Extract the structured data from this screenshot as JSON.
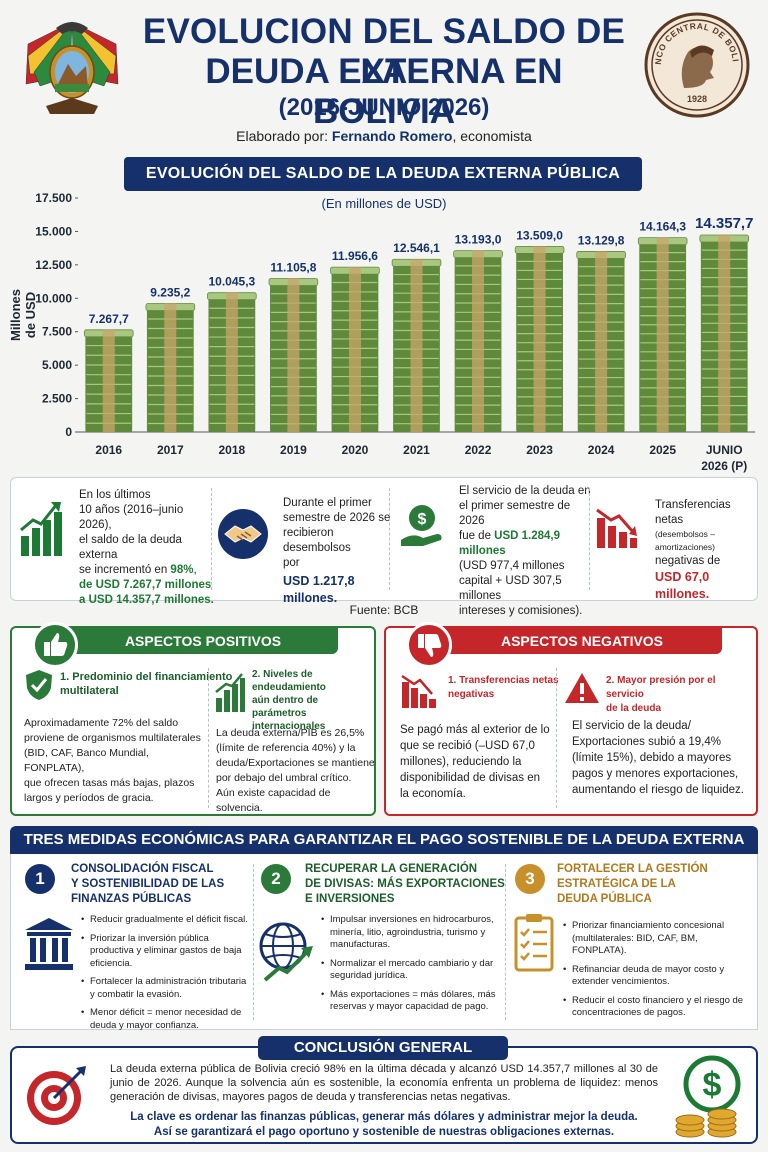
{
  "header": {
    "title_line1": "EVOLUCION DEL SALDO DE LA",
    "title_line2": "DEUDA EXTERNA EN BOLIVIA",
    "title_line3": "(2016-JUNIO 2026)",
    "author_prefix": "Elaborado por: ",
    "author_name": "Fernando Romero",
    "author_suffix": ", economista",
    "seal_text": "BANCO CENTRAL DE BOLIVIA",
    "seal_year": "1928"
  },
  "chart_section": {
    "title": "EVOLUCIÓN DEL SALDO DE LA DEUDA EXTERNA PÚBLICA",
    "subtitle": "(En millones de USD)"
  },
  "chart_data": {
    "type": "bar",
    "ylabel": "Millones de USD",
    "categories": [
      "2016",
      "2017",
      "2018",
      "2019",
      "2020",
      "2021",
      "2022",
      "2023",
      "2024",
      "2025",
      "JUNIO 2026 (P)"
    ],
    "values": [
      7267.7,
      9235.2,
      10045.3,
      11105.8,
      11956.6,
      12546.1,
      13193.0,
      13509.0,
      13129.8,
      14164.3,
      14357.7
    ],
    "value_labels": [
      "7.267,7",
      "9.235,2",
      "10.045,3",
      "11.105,8",
      "11.956,6",
      "12.546,1",
      "13.193,0",
      "13.509,0",
      "13.129,8",
      "14.164,3",
      "14.357,7"
    ],
    "ylim": [
      0,
      17500
    ],
    "yticks": [
      0,
      2500,
      5000,
      7500,
      10000,
      12500,
      15000,
      17500
    ],
    "ytick_labels": [
      "0",
      "2.500",
      "5.000",
      "7.500",
      "10.000",
      "12.500",
      "15.000",
      "17.500"
    ],
    "grid": false,
    "colors": {
      "bar": "#5f8a3c",
      "bar_light": "#a9c780",
      "band": "#c9a66b",
      "label": "#15306b"
    }
  },
  "stats": {
    "s1": {
      "t1": "En los últimos",
      "t2": "10 años (2016–junio 2026),",
      "t3": "el saldo de la deuda externa",
      "t4": "se incrementó en ",
      "t4b": "98%",
      "t4c": ",",
      "t5": "de USD 7.267,7 millones",
      "t6": "a USD 14.357,7 millones."
    },
    "s2": {
      "t1": "Durante el primer",
      "t2": "semestre de 2026 se",
      "t3": "recibieron desembolsos",
      "t4": "por",
      "t5": "USD 1.217,8",
      "t6": "millones."
    },
    "s3": {
      "t1": "El servicio de la deuda en",
      "t2": "el primer semestre de 2026",
      "t3": "fue de ",
      "t3b": "USD 1.284,9",
      "t4": "millones",
      "t5": "(USD 977,4 millones",
      "t6": "capital + USD 307,5 millones",
      "t7": "intereses y comisiones)."
    },
    "s4": {
      "t1": "Transferencias netas",
      "t2": "(desembolsos – amortizaciones)",
      "t3": "negativas de",
      "t4": "USD 67,0",
      "t5": "millones."
    },
    "source": "Fuente: BCB"
  },
  "positive": {
    "title": "ASPECTOS POSITIVOS",
    "p1_title_1": "1. Predominio del financiamiento",
    "p1_title_2": "multilateral",
    "p1_body": [
      "Aproximadamente 72% del saldo",
      "proviene de organismos multilaterales",
      "(BID, CAF, Banco Mundial, FONPLATA),",
      "que ofrecen tasas más bajas, plazos",
      "largos y períodos de gracia."
    ],
    "p2_title": [
      "2. Niveles de endeudamiento",
      "aún dentro de parámetros",
      "internacionales"
    ],
    "p2_body": [
      "La deuda externa/PIB es 26,5%",
      "(límite de referencia 40%) y la",
      "deuda/Exportaciones se mantiene",
      "por debajo del umbral crítico.",
      "Aún existe capacidad de solvencia."
    ]
  },
  "negative": {
    "title": "ASPECTOS NEGATIVOS",
    "n1_title": [
      "1. Transferencias netas",
      "negativas"
    ],
    "n1_body": [
      "Se pagó más al exterior de lo",
      "que se recibió (–USD 67,0",
      "millones), reduciendo la",
      "disponibilidad de divisas en",
      "la economía."
    ],
    "n2_title": [
      "2. Mayor presión por el servicio",
      "de la deuda"
    ],
    "n2_body": [
      "El servicio de la deuda/",
      "Exportaciones subió a 19,4%",
      "(límite 15%), debido a mayores",
      "pagos y menores exportaciones,",
      "aumentando el riesgo de liquidez."
    ]
  },
  "measures": {
    "title": "TRES MEDIDAS ECONÓMICAS PARA GARANTIZAR EL PAGO SOSTENIBLE DE LA DEUDA EXTERNA",
    "m1": {
      "num": "1",
      "title": [
        "CONSOLIDACIÓN FISCAL",
        "Y SOSTENIBILIDAD DE LAS",
        "FINANZAS PÚBLICAS"
      ],
      "bullets": [
        "Reducir gradualmente el déficit fiscal.",
        "Priorizar la inversión pública productiva y eliminar gastos de baja eficiencia.",
        "Fortalecer la administración tributaria y combatir la evasión.",
        "Menor déficit = menor necesidad de deuda y mayor confianza."
      ]
    },
    "m2": {
      "num": "2",
      "title": [
        "RECUPERAR LA GENERACIÓN",
        "DE DIVISAS: MÁS EXPORTACIONES",
        "E INVERSIONES"
      ],
      "bullets": [
        "Impulsar inversiones en hidrocarburos, minería, litio, agroindustria, turismo y manufacturas.",
        "Normalizar el mercado cambiario y dar seguridad jurídica.",
        "Más exportaciones = más dólares, más reservas y mayor capacidad de pago."
      ]
    },
    "m3": {
      "num": "3",
      "title": [
        "FORTALECER LA GESTIÓN",
        "ESTRATÉGICA DE LA",
        "DEUDA PÚBLICA"
      ],
      "bullets": [
        "Priorizar financiamiento concesional (multilaterales: BID, CAF, BM, FONPLATA).",
        "Refinanciar deuda de mayor costo y extender vencimientos.",
        "Reducir el costo financiero y el riesgo de concentraciones de pagos."
      ]
    }
  },
  "conclusion": {
    "title": "CONCLUSIÓN GENERAL",
    "text": "La deuda externa pública de Bolivia creció 98% en la última década y alcanzó USD 14.357,7 millones al 30 de junio de 2026. Aunque la solvencia aún es sostenible, la economía enfrenta un problema de liquidez: menos generación de divisas, mayores pagos de deuda y transferencias netas negativas.",
    "key_line1": "La clave es ordenar las finanzas públicas, generar más dólares y administrar mejor la deuda.",
    "key_line2": "Así se garantizará el pago oportuno y sostenible de nuestras obligaciones externas."
  },
  "colors": {
    "navy": "#15306b",
    "green": "#2b7a3a",
    "red": "#c4262a",
    "gold": "#c8902a"
  },
  "icons": [
    "coat-of-arms-icon",
    "bank-seal-icon",
    "growth-chart-icon",
    "handshake-icon",
    "money-hand-icon",
    "falling-chart-icon",
    "thumbs-up-icon",
    "thumbs-down-icon",
    "shield-check-icon",
    "rising-bars-icon",
    "warning-icon",
    "bank-building-icon",
    "globe-icon",
    "clipboard-checklist-icon",
    "target-icon",
    "dollar-coins-icon"
  ]
}
